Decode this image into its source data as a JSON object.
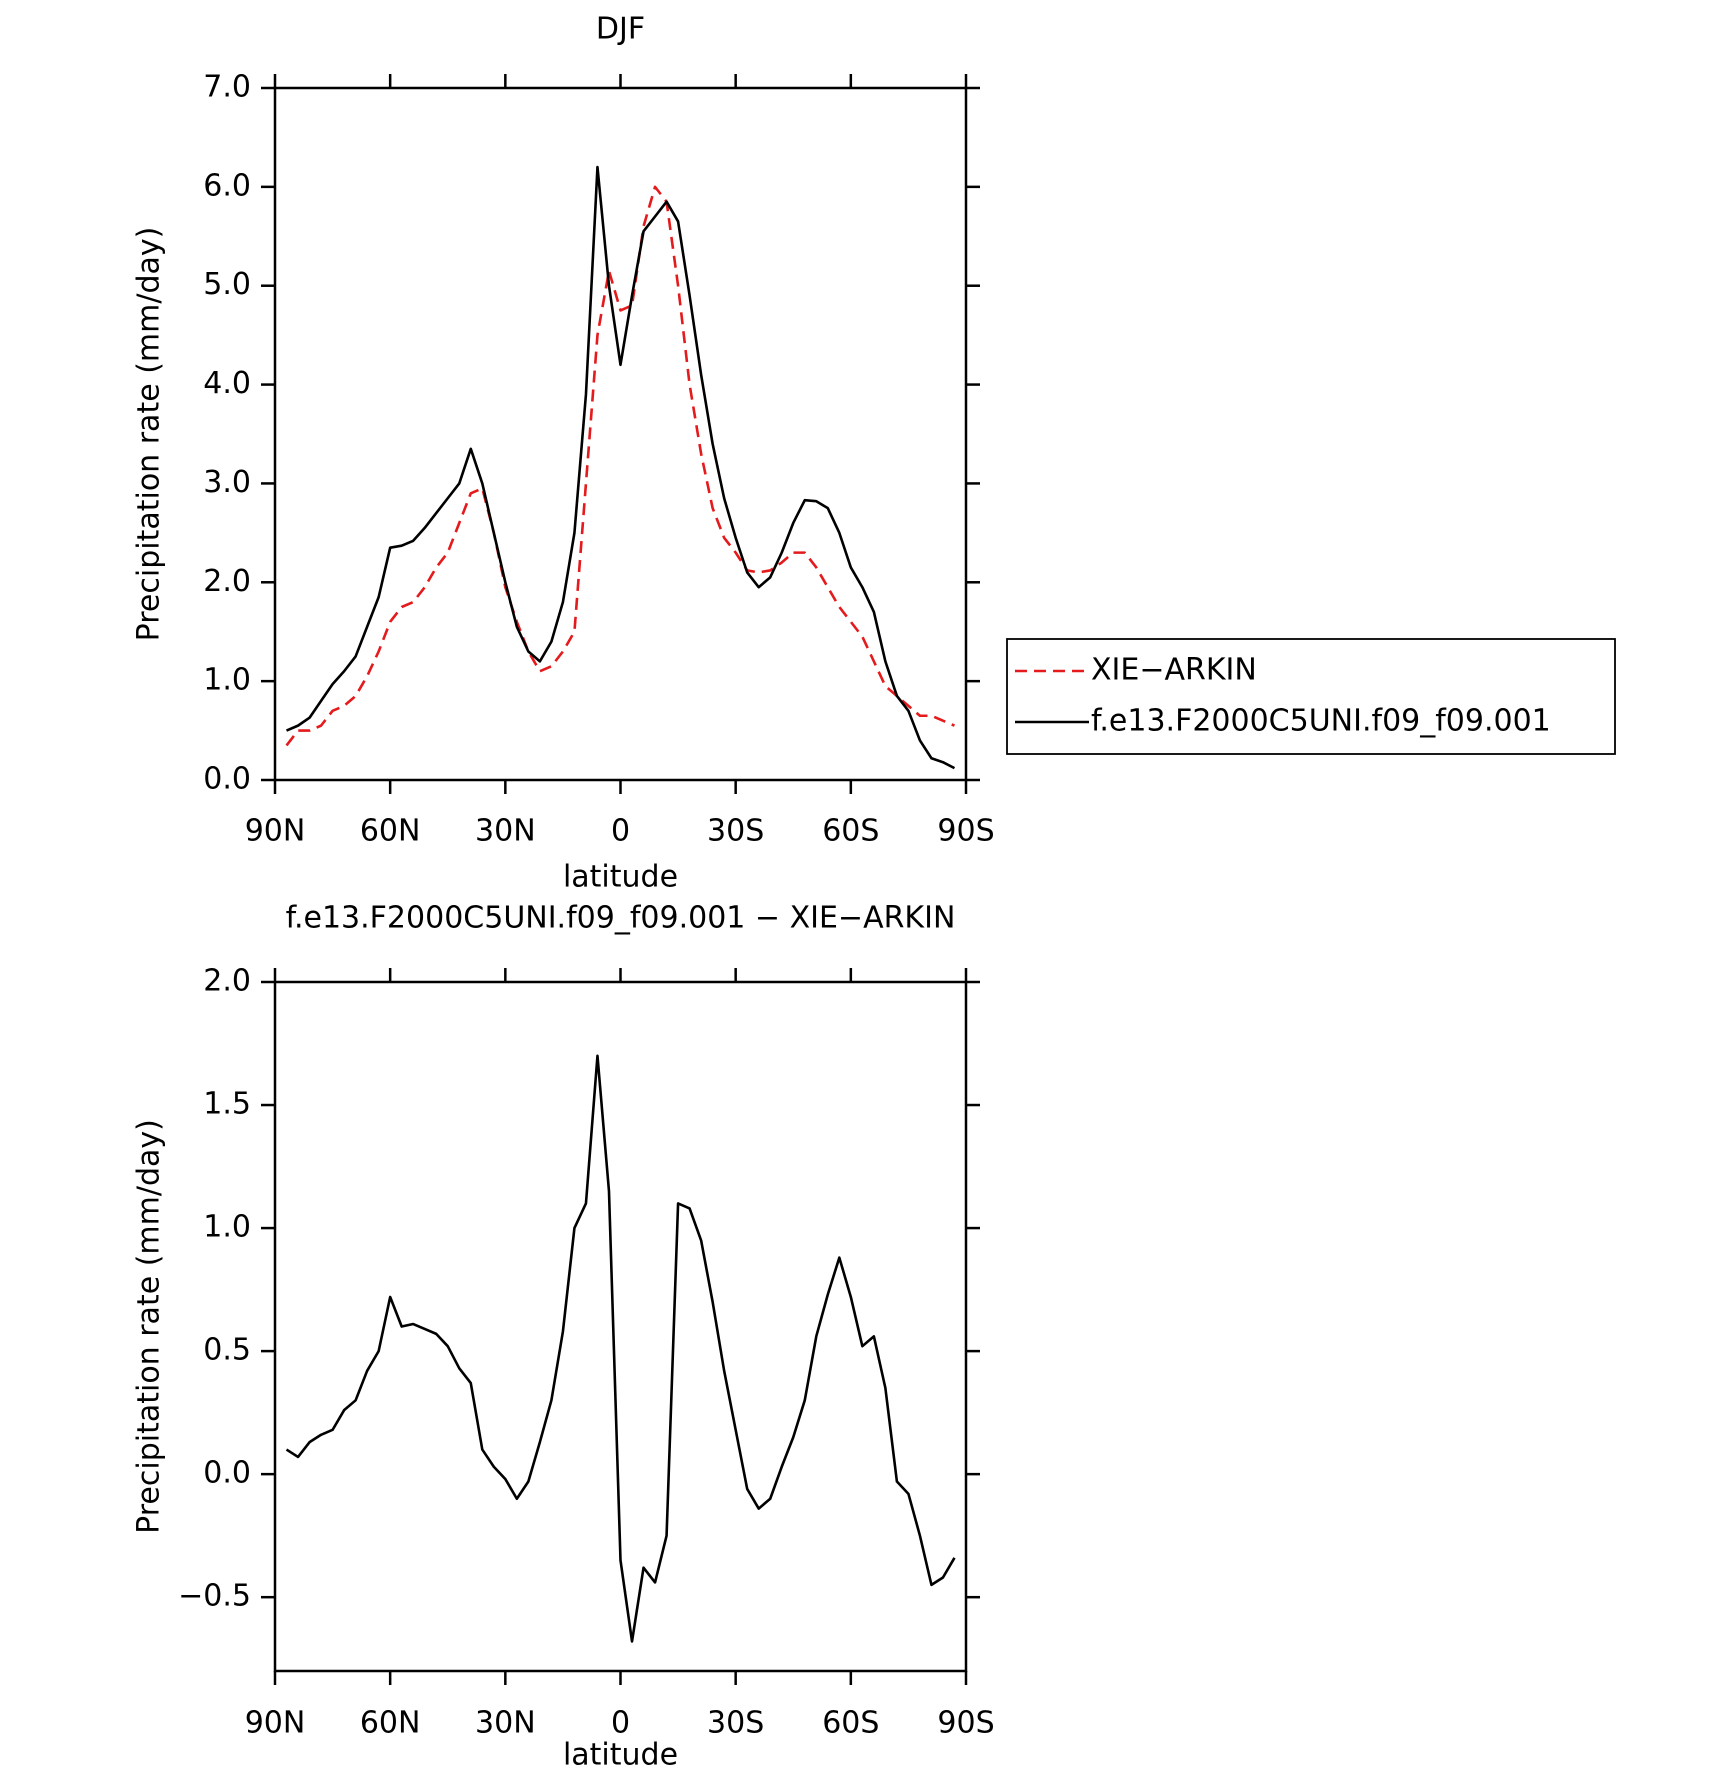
{
  "chart_data": [
    {
      "type": "line",
      "title": "DJF",
      "xlabel": "latitude",
      "ylabel": "Precipitation rate (mm/day)",
      "x": [
        87,
        84,
        81,
        78,
        75,
        72,
        69,
        66,
        63,
        60,
        57,
        54,
        51,
        48,
        45,
        42,
        39,
        36,
        33,
        30,
        27,
        24,
        21,
        18,
        15,
        12,
        9,
        6,
        3,
        0,
        -3,
        -6,
        -9,
        -12,
        -15,
        -18,
        -21,
        -24,
        -27,
        -30,
        -33,
        -36,
        -39,
        -42,
        -45,
        -48,
        -51,
        -54,
        -57,
        -60,
        -63,
        -66,
        -69,
        -72,
        -75,
        -78,
        -81,
        -84,
        -87
      ],
      "series": [
        {
          "name": "XIE−ARKIN",
          "color": "#e41a1c",
          "dashed": true,
          "values": [
            0.35,
            0.5,
            0.5,
            0.55,
            0.7,
            0.75,
            0.85,
            1.05,
            1.3,
            1.6,
            1.75,
            1.8,
            1.95,
            2.15,
            2.3,
            2.6,
            2.9,
            2.95,
            2.5,
            1.95,
            1.6,
            1.3,
            1.1,
            1.15,
            1.3,
            1.5,
            3.0,
            4.5,
            5.15,
            4.75,
            4.8,
            5.6,
            6.0,
            5.85,
            5.0,
            4.0,
            3.3,
            2.75,
            2.45,
            2.3,
            2.12,
            2.1,
            2.12,
            2.2,
            2.3,
            2.3,
            2.15,
            1.95,
            1.75,
            1.6,
            1.45,
            1.2,
            0.95,
            0.85,
            0.75,
            0.65,
            0.65,
            0.6,
            0.55
          ]
        },
        {
          "name": "f.e13.F2000C5UNI.f09_f09.001",
          "color": "#000000",
          "dashed": false,
          "values": [
            0.5,
            0.55,
            0.63,
            0.8,
            0.97,
            1.1,
            1.25,
            1.55,
            1.85,
            2.35,
            2.37,
            2.42,
            2.55,
            2.7,
            2.85,
            3.0,
            3.35,
            3.0,
            2.5,
            2.0,
            1.55,
            1.3,
            1.2,
            1.4,
            1.8,
            2.5,
            3.9,
            6.2,
            5.0,
            4.2,
            4.9,
            5.55,
            5.7,
            5.85,
            5.65,
            4.9,
            4.1,
            3.4,
            2.85,
            2.45,
            2.1,
            1.95,
            2.05,
            2.3,
            2.6,
            2.83,
            2.82,
            2.75,
            2.5,
            2.15,
            1.95,
            1.7,
            1.2,
            0.85,
            0.7,
            0.4,
            0.22,
            0.18,
            0.12
          ]
        }
      ],
      "xlim": [
        90,
        -90
      ],
      "xticks": [
        {
          "value": 90,
          "label": "90N"
        },
        {
          "value": 60,
          "label": "60N"
        },
        {
          "value": 30,
          "label": "30N"
        },
        0,
        {
          "value": -30,
          "label": "30S"
        },
        {
          "value": -60,
          "label": "60S"
        },
        {
          "value": -90,
          "label": "90S"
        }
      ],
      "ylim": [
        0,
        7
      ],
      "yticks": [
        {
          "value": 0,
          "label": "0.0"
        },
        {
          "value": 1,
          "label": "1.0"
        },
        {
          "value": 2,
          "label": "2.0"
        },
        {
          "value": 3,
          "label": "3.0"
        },
        {
          "value": 4,
          "label": "4.0"
        },
        {
          "value": 5,
          "label": "5.0"
        },
        {
          "value": 6,
          "label": "6.0"
        },
        {
          "value": 7,
          "label": "7.0"
        }
      ],
      "legend": "right"
    },
    {
      "type": "line",
      "title": "f.e13.F2000C5UNI.f09_f09.001 − XIE−ARKIN",
      "xlabel": "latitude",
      "ylabel": "Precipitation rate (mm/day)",
      "x": [
        87,
        84,
        81,
        78,
        75,
        72,
        69,
        66,
        63,
        60,
        57,
        54,
        51,
        48,
        45,
        42,
        39,
        36,
        33,
        30,
        27,
        24,
        21,
        18,
        15,
        12,
        9,
        6,
        3,
        0,
        -3,
        -6,
        -9,
        -12,
        -15,
        -18,
        -21,
        -24,
        -27,
        -30,
        -33,
        -36,
        -39,
        -42,
        -45,
        -48,
        -51,
        -54,
        -57,
        -60,
        -63,
        -66,
        -69,
        -72,
        -75,
        -78,
        -81,
        -84,
        -87
      ],
      "series": [
        {
          "color": "#000000",
          "dashed": false,
          "values": [
            0.1,
            0.07,
            0.13,
            0.16,
            0.18,
            0.26,
            0.3,
            0.42,
            0.5,
            0.72,
            0.6,
            0.61,
            0.59,
            0.57,
            0.52,
            0.43,
            0.37,
            0.1,
            0.03,
            -0.02,
            -0.1,
            -0.03,
            0.13,
            0.3,
            0.58,
            1.0,
            1.1,
            1.7,
            1.15,
            -0.35,
            -0.68,
            -0.38,
            -0.44,
            -0.25,
            1.1,
            1.08,
            0.95,
            0.7,
            0.42,
            0.18,
            -0.06,
            -0.14,
            -0.1,
            0.03,
            0.15,
            0.3,
            0.56,
            0.73,
            0.88,
            0.72,
            0.52,
            0.56,
            0.35,
            -0.03,
            -0.08,
            -0.25,
            -0.45,
            -0.42,
            -0.34
          ]
        }
      ],
      "xlim": [
        90,
        -90
      ],
      "xticks": [
        {
          "value": 90,
          "label": "90N"
        },
        {
          "value": 60,
          "label": "60N"
        },
        {
          "value": 30,
          "label": "30N"
        },
        0,
        {
          "value": -30,
          "label": "30S"
        },
        {
          "value": -60,
          "label": "60S"
        },
        {
          "value": -90,
          "label": "90S"
        }
      ],
      "ylim": [
        -0.8,
        2.0
      ],
      "yticks": [
        {
          "value": -0.5,
          "label": "−0.5"
        },
        {
          "value": 0,
          "label": "0.0"
        },
        0.5,
        {
          "value": 1,
          "label": "1.0"
        },
        1.5,
        {
          "value": 2,
          "label": "2.0"
        }
      ]
    }
  ]
}
